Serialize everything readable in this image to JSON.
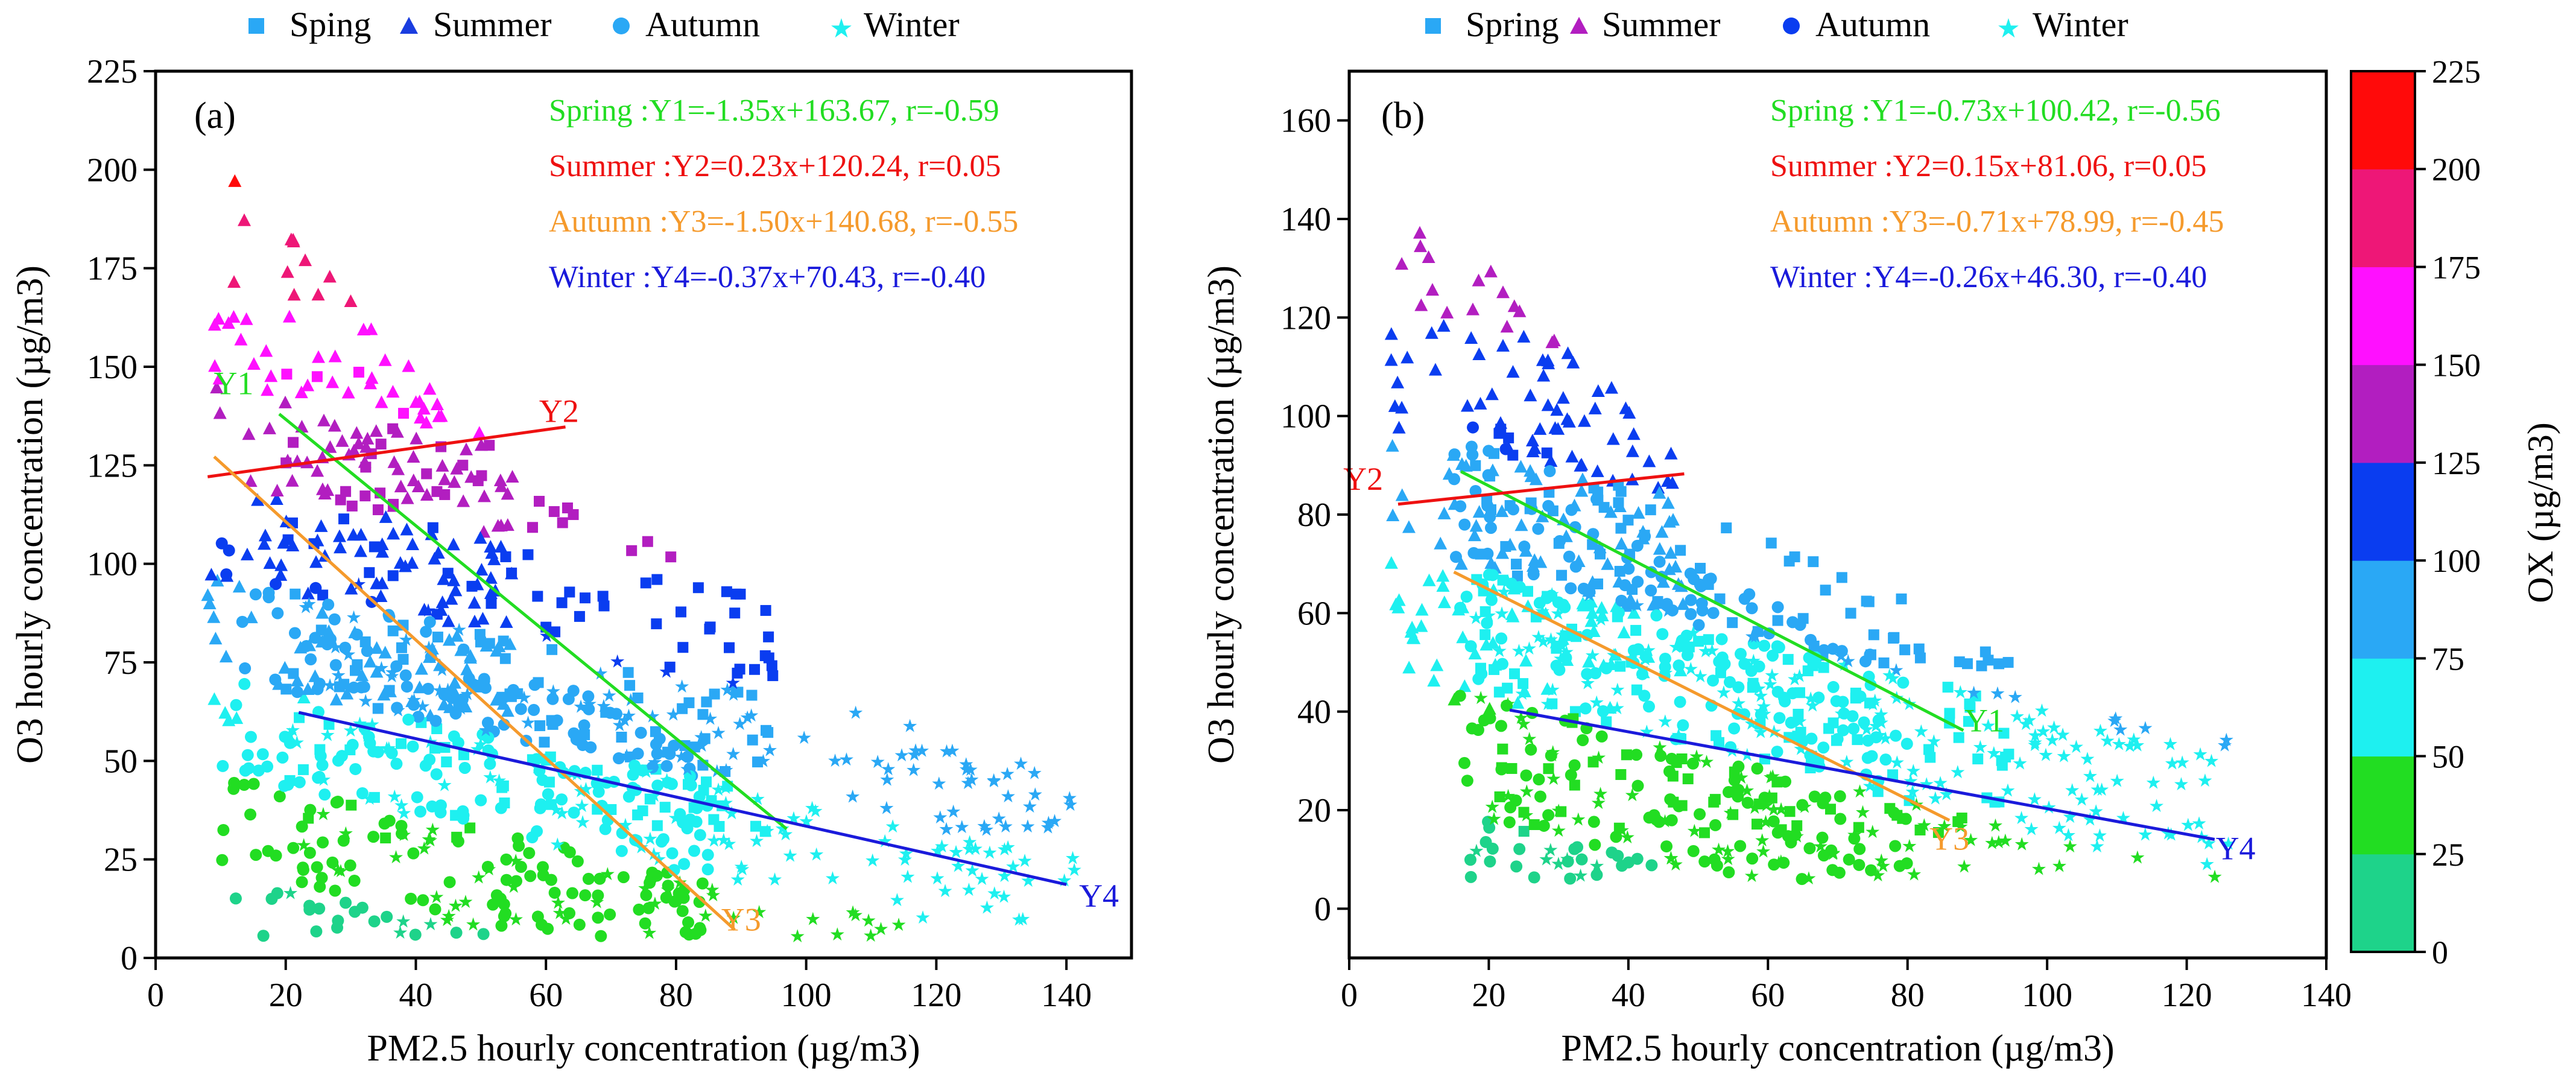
{
  "chart_data": [
    {
      "panel_label": "(a)",
      "type": "scatter",
      "xlabel": "PM2.5 hourly concentration (µg/m3)",
      "ylabel": "O3 hourly concentration (µg/m3)",
      "xlim": [
        0,
        150
      ],
      "ylim": [
        0,
        225
      ],
      "xticks": [
        0,
        20,
        40,
        60,
        80,
        100,
        120,
        140
      ],
      "yticks": [
        0,
        25,
        50,
        75,
        100,
        125,
        150,
        175,
        200,
        225
      ],
      "legend": [
        "Sping",
        "Summer",
        "Autumn",
        "Winter"
      ],
      "legend_markers": [
        "square",
        "triangle",
        "circle",
        "star"
      ],
      "equations": [
        {
          "text": "Spring :Y1=-1.35x+163.67, r=-0.59",
          "color": "#22dd22"
        },
        {
          "text": "Summer :Y2=0.23x+120.24, r=0.05",
          "color": "#ee1111"
        },
        {
          "text": "Autumn :Y3=-1.50x+140.68, r=-0.55",
          "color": "#f59a2c"
        },
        {
          "text": "Winter :Y4=-0.37x+70.43, r=-0.40",
          "color": "#1a1adb"
        }
      ],
      "fit_lines": [
        {
          "label": "Y1",
          "slope": -1.35,
          "intercept": 163.67,
          "x_range": [
            19,
            97
          ],
          "color": "#22dd22",
          "label_at": [
            12,
            143
          ]
        },
        {
          "label": "Y2",
          "slope": 0.23,
          "intercept": 120.24,
          "x_range": [
            8,
            63
          ],
          "color": "#ee1111",
          "label_at": [
            62,
            136
          ]
        },
        {
          "label": "Y3",
          "slope": -1.5,
          "intercept": 140.68,
          "x_range": [
            9,
            89
          ],
          "color": "#f59a2c",
          "label_at": [
            90,
            7
          ]
        },
        {
          "label": "Y4",
          "slope": -0.37,
          "intercept": 70.43,
          "x_range": [
            22,
            140
          ],
          "color": "#1a1adb",
          "label_at": [
            145,
            13
          ]
        }
      ],
      "clusters": [
        {
          "marker": "triangle",
          "x": [
            8,
            55
          ],
          "y": [
            60,
            205
          ],
          "n": 230,
          "seed": 11
        },
        {
          "marker": "square",
          "x": [
            20,
            95
          ],
          "y": [
            30,
            160
          ],
          "n": 190,
          "seed": 12
        },
        {
          "marker": "circle",
          "x": [
            10,
            85
          ],
          "y": [
            5,
            110
          ],
          "n": 320,
          "seed": 13
        },
        {
          "marker": "star",
          "x": [
            20,
            142
          ],
          "y": [
            5,
            100
          ],
          "n": 260,
          "seed": 14
        }
      ]
    },
    {
      "panel_label": "(b)",
      "type": "scatter",
      "xlabel": "PM2.5 hourly concentration (µg/m3)",
      "ylabel": "O3 hourly concentration (µg/m3)",
      "xlim": [
        0,
        140
      ],
      "ylim": [
        -10,
        170
      ],
      "xticks": [
        0,
        20,
        40,
        60,
        80,
        100,
        120,
        140
      ],
      "yticks": [
        0,
        20,
        40,
        60,
        80,
        100,
        120,
        140,
        160
      ],
      "legend": [
        "Spring",
        "Summer",
        "Autumn",
        "Winter"
      ],
      "legend_markers": [
        "square",
        "triangle",
        "circle",
        "star"
      ],
      "equations": [
        {
          "text": "Spring :Y1=-0.73x+100.42, r=-0.56",
          "color": "#22dd22"
        },
        {
          "text": "Summer :Y2=0.15x+81.06, r=0.05",
          "color": "#ee1111"
        },
        {
          "text": "Autumn :Y3=-0.71x+78.99, r=-0.45",
          "color": "#f59a2c"
        },
        {
          "text": "Winter :Y4=-0.26x+46.30, r=-0.40",
          "color": "#1a1adb"
        }
      ],
      "fit_lines": [
        {
          "label": "Y1",
          "slope": -0.73,
          "intercept": 100.42,
          "x_range": [
            16,
            88
          ],
          "color": "#22dd22",
          "label_at": [
            91,
            36
          ]
        },
        {
          "label": "Y2",
          "slope": 0.15,
          "intercept": 81.06,
          "x_range": [
            7,
            48
          ],
          "color": "#ee1111",
          "label_at": [
            2,
            85
          ]
        },
        {
          "label": "Y3",
          "slope": -0.71,
          "intercept": 78.99,
          "x_range": [
            15,
            86
          ],
          "color": "#f59a2c",
          "label_at": [
            86,
            12
          ]
        },
        {
          "label": "Y4",
          "slope": -0.26,
          "intercept": 46.3,
          "x_range": [
            23,
            124
          ],
          "color": "#1a1adb",
          "label_at": [
            127,
            10
          ]
        }
      ],
      "clusters": [
        {
          "marker": "triangle",
          "x": [
            6,
            48
          ],
          "y": [
            40,
            152
          ],
          "n": 200,
          "seed": 21
        },
        {
          "marker": "square",
          "x": [
            18,
            95
          ],
          "y": [
            15,
            100
          ],
          "n": 200,
          "seed": 22
        },
        {
          "marker": "circle",
          "x": [
            15,
            80
          ],
          "y": [
            5,
            100
          ],
          "n": 300,
          "seed": 23
        },
        {
          "marker": "star",
          "x": [
            18,
            126
          ],
          "y": [
            5,
            70
          ],
          "n": 260,
          "seed": 24
        }
      ]
    }
  ],
  "colorbar": {
    "title": "OX (µg/m3)",
    "ticks": [
      0,
      25,
      50,
      75,
      100,
      125,
      150,
      175,
      200,
      225
    ],
    "bands": [
      "#1ed38a",
      "#22dd22",
      "#1ef0f0",
      "#2aa8f5",
      "#0a3df0",
      "#b21ec0",
      "#ff10ff",
      "#ee1777",
      "#ff0a0a"
    ]
  }
}
